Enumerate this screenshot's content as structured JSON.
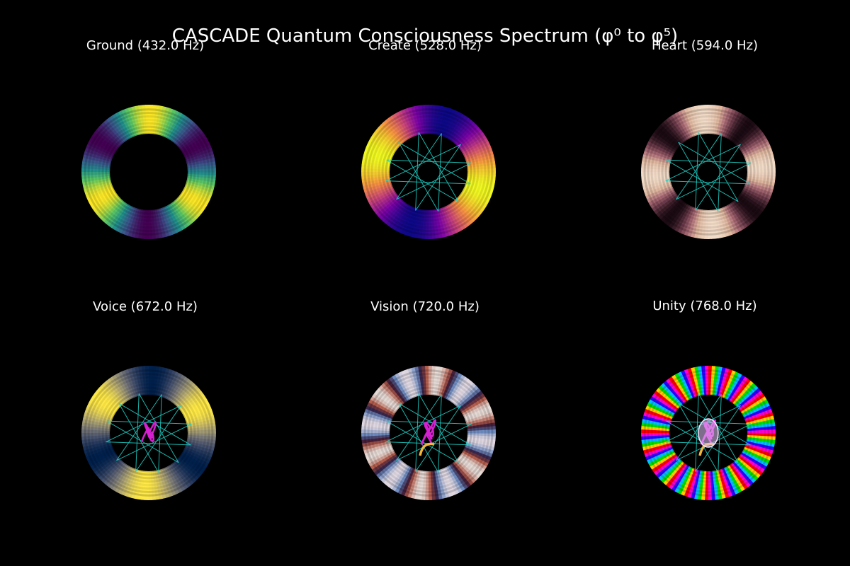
{
  "figure": {
    "title": "CASCADE Quantum Consciousness Spectrum (φ⁰ to φ⁵)",
    "background": "#000000"
  },
  "chart_data": [
    {
      "type": "surface-3d",
      "title": "Ground (432.0 Hz)",
      "name": "Ground",
      "frequency_hz": 432.0,
      "colormap": "viridis",
      "stripes": 6,
      "star_lines": false,
      "spiral": false,
      "inner_glow": false
    },
    {
      "type": "surface-3d",
      "title": "Create (528.0 Hz)",
      "name": "Create",
      "frequency_hz": 528.0,
      "colormap": "plasma",
      "stripes": 4,
      "star_lines": true,
      "spiral": false,
      "inner_glow": false
    },
    {
      "type": "surface-3d",
      "title": "Heart (594.0 Hz)",
      "name": "Heart",
      "frequency_hz": 594.0,
      "colormap": "copper-pink",
      "stripes": 8,
      "star_lines": true,
      "spiral": false,
      "inner_glow": false
    },
    {
      "type": "surface-3d",
      "title": "Voice (672.0 Hz)",
      "name": "Voice",
      "frequency_hz": 672.0,
      "colormap": "cividis",
      "stripes": 6,
      "star_lines": true,
      "spiral": true,
      "inner_glow": false
    },
    {
      "type": "surface-3d",
      "title": "Vision (720.0 Hz)",
      "name": "Vision",
      "frequency_hz": 720.0,
      "colormap": "twilight",
      "stripes": 12,
      "star_lines": true,
      "spiral": true,
      "inner_glow": false
    },
    {
      "type": "surface-3d",
      "title": "Unity (768.0 Hz)",
      "name": "Unity",
      "frequency_hz": 768.0,
      "colormap": "hsv",
      "stripes": 20,
      "star_lines": true,
      "spiral": true,
      "inner_glow": true
    }
  ],
  "colors": {
    "star_lines": "#1fd3c8",
    "spiral_magenta": "#d61fd0",
    "spiral_gold": "#f2b63a"
  }
}
